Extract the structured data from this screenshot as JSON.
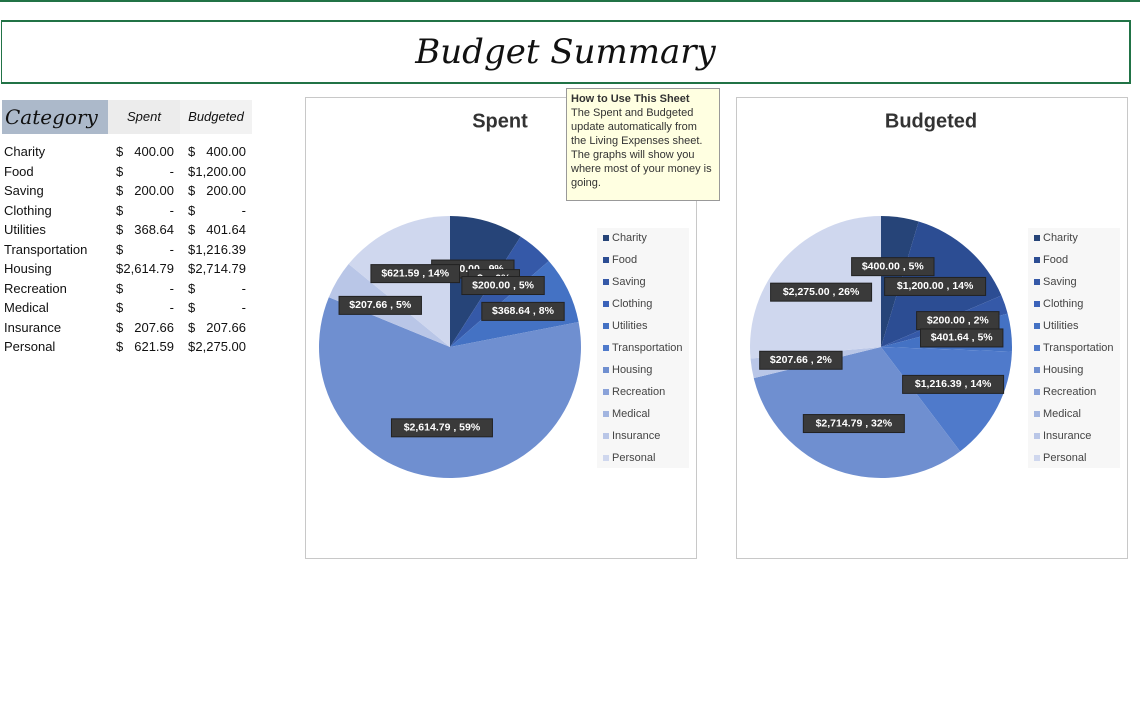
{
  "header": {
    "title": "Budget Summary"
  },
  "table": {
    "columns": [
      "Category",
      "Spent",
      "Budgeted"
    ],
    "rows": [
      [
        "Charity",
        [
          "$",
          "400.00"
        ],
        [
          "$",
          "400.00"
        ]
      ],
      [
        "Food",
        [
          "$",
          "-"
        ],
        [
          "$",
          "1,200.00"
        ]
      ],
      [
        "Saving",
        [
          "$",
          "200.00"
        ],
        [
          "$",
          "200.00"
        ]
      ],
      [
        "Clothing",
        [
          "$",
          "-"
        ],
        [
          "$",
          "-"
        ]
      ],
      [
        "Utilities",
        [
          "$",
          "368.64"
        ],
        [
          "$",
          "401.64"
        ]
      ],
      [
        "Transportation",
        [
          "$",
          "-"
        ],
        [
          "$",
          "1,216.39"
        ]
      ],
      [
        "Housing",
        [
          "$",
          "2,614.79"
        ],
        [
          "$",
          "2,714.79"
        ]
      ],
      [
        "Recreation",
        [
          "$",
          "-"
        ],
        [
          "$",
          "-"
        ]
      ],
      [
        "Medical",
        [
          "$",
          "-"
        ],
        [
          "$",
          "-"
        ]
      ],
      [
        "Insurance",
        [
          "$",
          "207.66"
        ],
        [
          "$",
          "207.66"
        ]
      ],
      [
        "Personal",
        [
          "$",
          "621.59"
        ],
        [
          "$",
          "2,275.00"
        ]
      ]
    ]
  },
  "note": {
    "title": "How to Use This Sheet",
    "body": "The Spent and Budgeted update automatically from the Living Expenses sheet. The graphs will show you where most of your money is going."
  },
  "chart_data": [
    {
      "type": "pie",
      "title": "Spent",
      "categories": [
        "Charity",
        "Food",
        "Saving",
        "Clothing",
        "Utilities",
        "Transportation",
        "Housing",
        "Recreation",
        "Medical",
        "Insurance",
        "Personal"
      ],
      "values": [
        400,
        0,
        200,
        0,
        368.64,
        0,
        2614.79,
        0,
        0,
        207.66,
        621.59
      ],
      "value_labels": [
        "$400.00 , 9%",
        "$- , 0%",
        "$200.00 , 5%",
        null,
        "$368.64 , 8%",
        null,
        "$2,614.79 , 59%",
        null,
        null,
        "$207.66 , 5%",
        "$621.59 , 14%"
      ],
      "colors": [
        "#264478",
        "#2c4d93",
        "#3559a8",
        "#3b63ba",
        "#4472c4",
        "#4f7acb",
        "#6f8fd0",
        "#8aa2d9",
        "#a2b5e0",
        "#b9c6e7",
        "#cfd7ee"
      ]
    },
    {
      "type": "pie",
      "title": "Budgeted",
      "categories": [
        "Charity",
        "Food",
        "Saving",
        "Clothing",
        "Utilities",
        "Transportation",
        "Housing",
        "Recreation",
        "Medical",
        "Insurance",
        "Personal"
      ],
      "values": [
        400,
        1200,
        200,
        0,
        401.64,
        1216.39,
        2714.79,
        0,
        0,
        207.66,
        2275
      ],
      "value_labels": [
        "$400.00 , 5%",
        "$1,200.00 , 14%",
        "$200.00 , 2%",
        null,
        "$401.64 , 5%",
        "$1,216.39 , 14%",
        "$2,714.79 , 32%",
        null,
        null,
        "$207.66 , 2%",
        "$2,275.00 , 26%"
      ],
      "colors": [
        "#264478",
        "#2c4d93",
        "#3559a8",
        "#3b63ba",
        "#4472c4",
        "#4f7acb",
        "#6f8fd0",
        "#8aa2d9",
        "#a2b5e0",
        "#b9c6e7",
        "#cfd7ee"
      ]
    }
  ]
}
